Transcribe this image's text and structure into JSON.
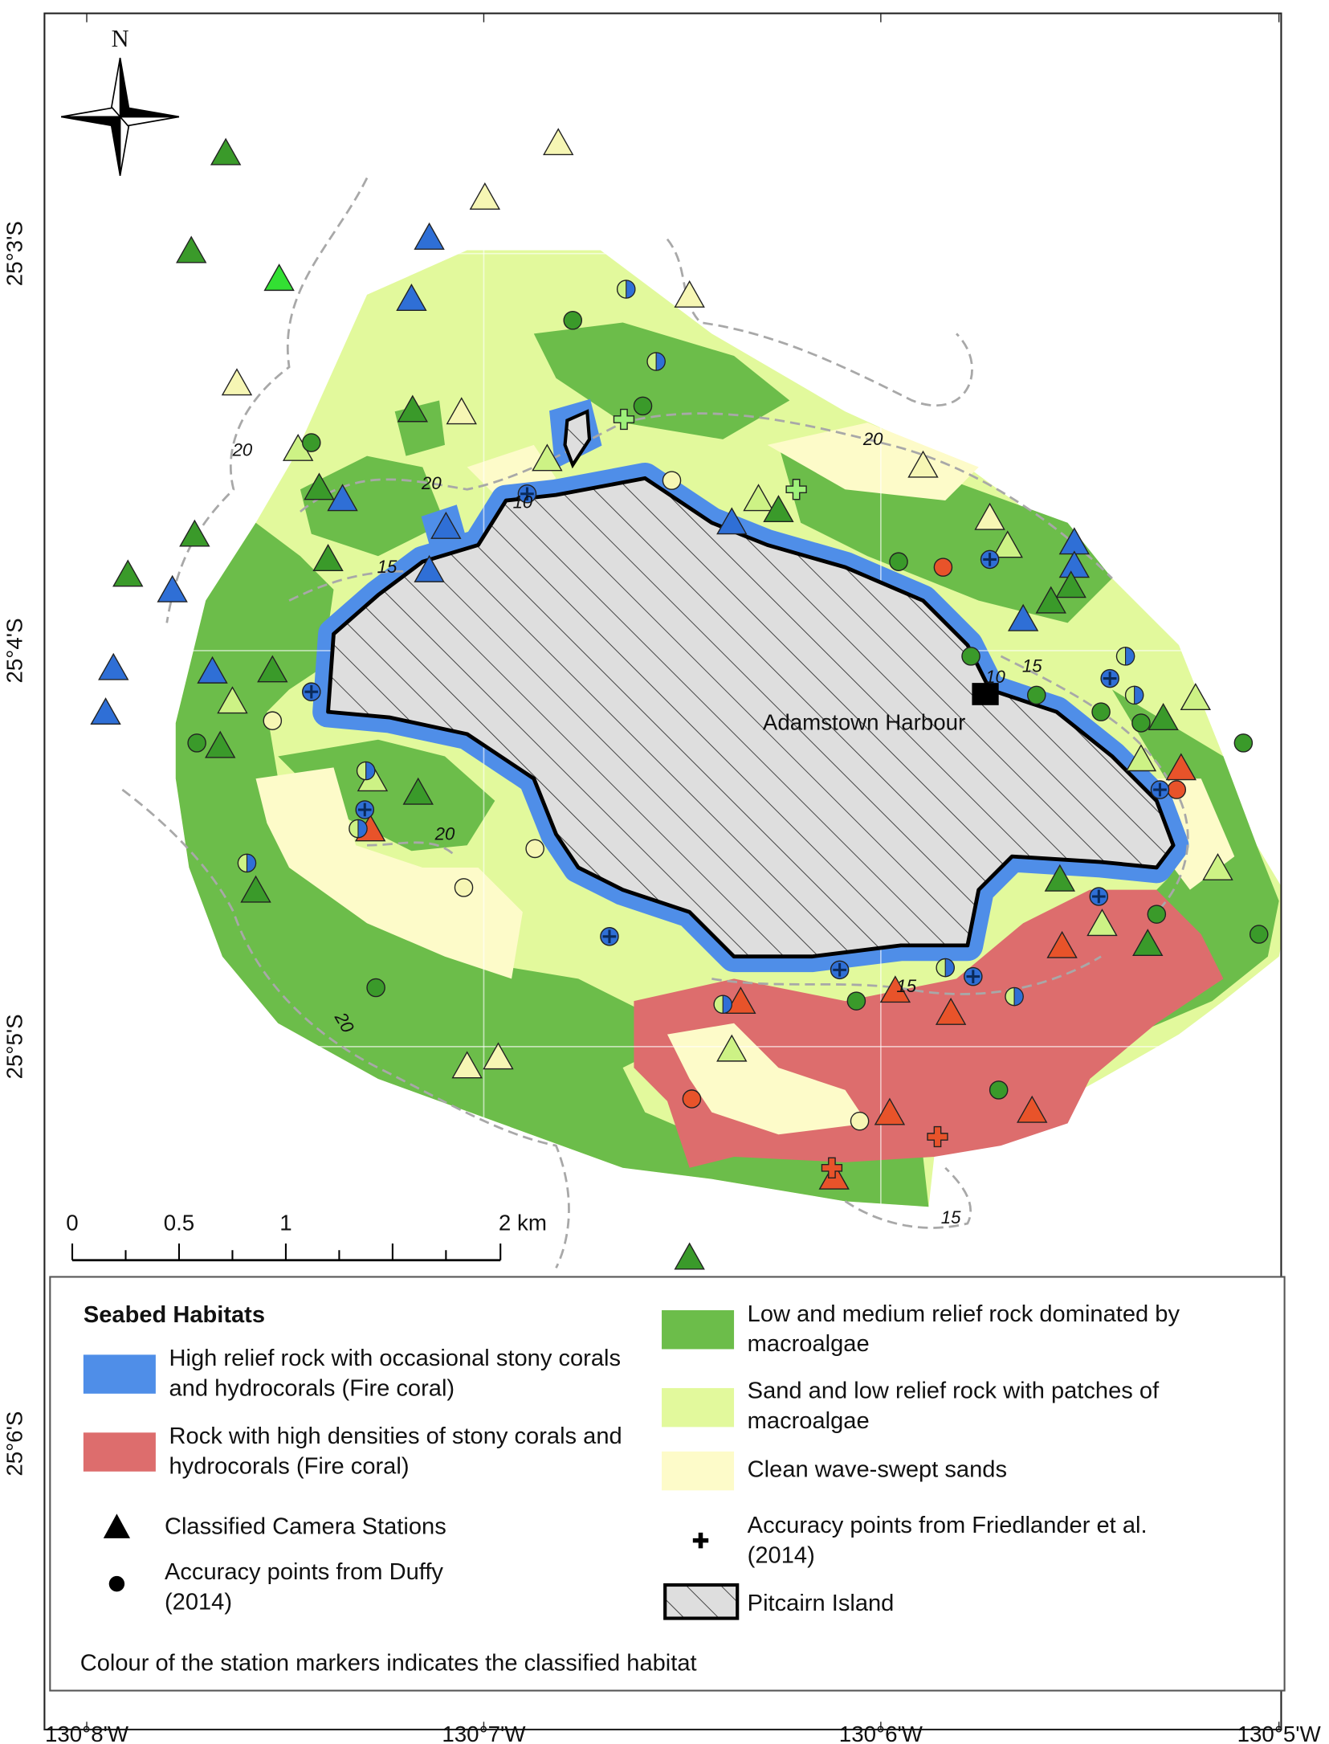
{
  "map": {
    "north_label": "N",
    "place_label": "Adamstown Harbour",
    "longitude_labels": [
      "130°8'W",
      "130°7'W",
      "130°6'W",
      "130°5'W"
    ],
    "latitude_labels": [
      "25°3'S",
      "25°4'S",
      "25°5'S",
      "25°6'S"
    ],
    "contour_labels": [
      "20",
      "20",
      "15",
      "10",
      "20",
      "15",
      "10",
      "20",
      "15",
      "20",
      "15"
    ],
    "scale_bar_labels": [
      "0",
      "0.5",
      "1",
      "2 km"
    ]
  },
  "legend": {
    "title": "Seabed Habitats",
    "habitats": [
      "High relief rock with occasional stony corals and hydrocorals (Fire coral)",
      "Rock with high densities of stony corals and hydrocorals (Fire coral)",
      "Low and medium relief rock dominated by macroalgae",
      "Sand and low relief rock with patches of macroalgae",
      "Clean wave-swept sands"
    ],
    "markers": [
      "Classified Camera Stations",
      "Accuracy points from Duffy (2014)",
      "Accuracy points from Friedlander et al. (2014)"
    ],
    "island": "Pitcairn Island",
    "note": "Colour of the station markers indicates the classified habitat"
  }
}
